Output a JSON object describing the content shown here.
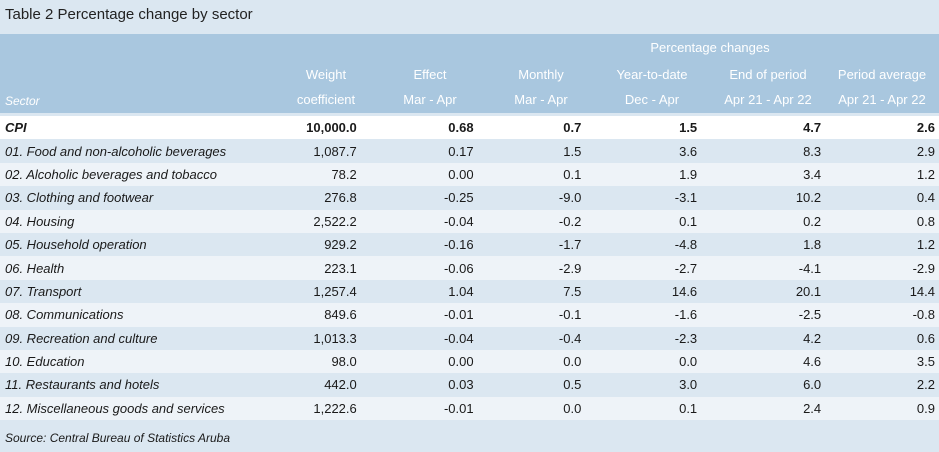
{
  "title": "Table 2 Percentage change by sector",
  "header": {
    "group_label": "Percentage changes",
    "sector_label": "Sector",
    "columns": [
      {
        "line1": "Weight",
        "line2": "coefficient"
      },
      {
        "line1": "Effect",
        "line2": "Mar - Apr"
      },
      {
        "line1": "Monthly",
        "line2": "Mar - Apr"
      },
      {
        "line1": "Year-to-date",
        "line2": "Dec - Apr"
      },
      {
        "line1": "End of period",
        "line2": "Apr 21 - Apr 22"
      },
      {
        "line1": "Period average",
        "line2": "Apr 21 - Apr 22"
      }
    ]
  },
  "rows": [
    [
      "CPI",
      "10,000.0",
      "0.68",
      "0.7",
      "1.5",
      "4.7",
      "2.6"
    ],
    [
      "01. Food and non-alcoholic beverages",
      "1,087.7",
      "0.17",
      "1.5",
      "3.6",
      "8.3",
      "2.9"
    ],
    [
      "02. Alcoholic beverages and tobacco",
      "78.2",
      "0.00",
      "0.1",
      "1.9",
      "3.4",
      "1.2"
    ],
    [
      "03. Clothing and footwear",
      "276.8",
      "-0.25",
      "-9.0",
      "-3.1",
      "10.2",
      "0.4"
    ],
    [
      "04. Housing",
      "2,522.2",
      "-0.04",
      "-0.2",
      "0.1",
      "0.2",
      "0.8"
    ],
    [
      "05. Household operation",
      "929.2",
      "-0.16",
      "-1.7",
      "-4.8",
      "1.8",
      "1.2"
    ],
    [
      "06. Health",
      "223.1",
      "-0.06",
      "-2.9",
      "-2.7",
      "-4.1",
      "-2.9"
    ],
    [
      "07. Transport",
      "1,257.4",
      "1.04",
      "7.5",
      "14.6",
      "20.1",
      "14.4"
    ],
    [
      "08. Communications",
      "849.6",
      "-0.01",
      "-0.1",
      "-1.6",
      "-2.5",
      "-0.8"
    ],
    [
      "09. Recreation and culture",
      "1,013.3",
      "-0.04",
      "-0.4",
      "-2.3",
      "4.2",
      "0.6"
    ],
    [
      "10. Education",
      "98.0",
      "0.00",
      "0.0",
      "0.0",
      "4.6",
      "3.5"
    ],
    [
      "11. Restaurants and hotels",
      "442.0",
      "0.03",
      "0.5",
      "3.0",
      "6.0",
      "2.2"
    ],
    [
      "12. Miscellaneous goods and services",
      "1,222.6",
      "-0.01",
      "0.0",
      "0.1",
      "2.4",
      "0.9"
    ]
  ],
  "source": "Source: Central Bureau of Statistics Aruba"
}
